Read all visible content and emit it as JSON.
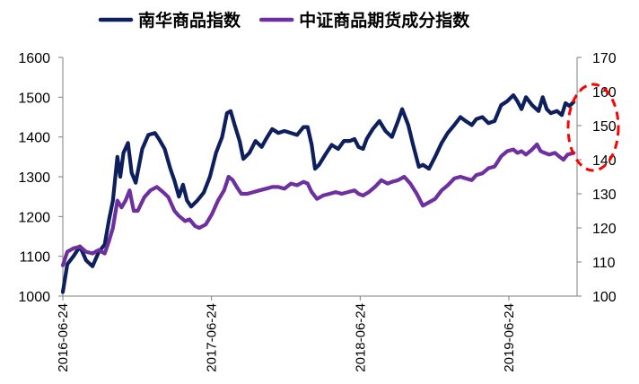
{
  "chart_data": {
    "type": "line",
    "x_labels": [
      "2016-06-24",
      "2017-06-24",
      "2018-06-24",
      "2019-06-24"
    ],
    "y_left": {
      "ticks": [
        "1000",
        "1100",
        "1200",
        "1300",
        "1400",
        "1500",
        "1600"
      ],
      "min": 1000,
      "max": 1600
    },
    "y_right": {
      "ticks": [
        "100",
        "110",
        "120",
        "130",
        "140",
        "150",
        "160",
        "170"
      ],
      "min": 100,
      "max": 170
    },
    "series": [
      {
        "name": "南华商品指数",
        "axis": "left",
        "color": "#0d1f5c",
        "points": [
          [
            "2016-06-24",
            1010
          ],
          [
            "2016-07-05",
            1080
          ],
          [
            "2016-07-20",
            1100
          ],
          [
            "2016-08-05",
            1125
          ],
          [
            "2016-08-20",
            1090
          ],
          [
            "2016-09-05",
            1075
          ],
          [
            "2016-09-20",
            1110
          ],
          [
            "2016-10-05",
            1130
          ],
          [
            "2016-10-15",
            1190
          ],
          [
            "2016-10-25",
            1240
          ],
          [
            "2016-11-05",
            1350
          ],
          [
            "2016-11-12",
            1300
          ],
          [
            "2016-11-20",
            1360
          ],
          [
            "2016-12-01",
            1385
          ],
          [
            "2016-12-10",
            1310
          ],
          [
            "2016-12-20",
            1285
          ],
          [
            "2017-01-05",
            1370
          ],
          [
            "2017-01-20",
            1405
          ],
          [
            "2017-02-05",
            1410
          ],
          [
            "2017-02-15",
            1395
          ],
          [
            "2017-03-01",
            1370
          ],
          [
            "2017-03-15",
            1320
          ],
          [
            "2017-03-25",
            1290
          ],
          [
            "2017-04-05",
            1250
          ],
          [
            "2017-04-15",
            1280
          ],
          [
            "2017-04-25",
            1240
          ],
          [
            "2017-05-05",
            1225
          ],
          [
            "2017-05-20",
            1240
          ],
          [
            "2017-06-05",
            1260
          ],
          [
            "2017-06-20",
            1300
          ],
          [
            "2017-07-05",
            1360
          ],
          [
            "2017-07-20",
            1400
          ],
          [
            "2017-08-01",
            1460
          ],
          [
            "2017-08-10",
            1465
          ],
          [
            "2017-08-20",
            1430
          ],
          [
            "2017-09-01",
            1390
          ],
          [
            "2017-09-10",
            1345
          ],
          [
            "2017-09-25",
            1360
          ],
          [
            "2017-10-10",
            1390
          ],
          [
            "2017-10-25",
            1375
          ],
          [
            "2017-11-05",
            1395
          ],
          [
            "2017-11-20",
            1420
          ],
          [
            "2017-12-05",
            1410
          ],
          [
            "2017-12-20",
            1415
          ],
          [
            "2018-01-05",
            1410
          ],
          [
            "2018-01-20",
            1405
          ],
          [
            "2018-02-05",
            1425
          ],
          [
            "2018-02-15",
            1425
          ],
          [
            "2018-02-25",
            1380
          ],
          [
            "2018-03-05",
            1320
          ],
          [
            "2018-03-15",
            1330
          ],
          [
            "2018-03-30",
            1355
          ],
          [
            "2018-04-15",
            1380
          ],
          [
            "2018-05-01",
            1370
          ],
          [
            "2018-05-15",
            1390
          ],
          [
            "2018-05-30",
            1390
          ],
          [
            "2018-06-10",
            1395
          ],
          [
            "2018-06-20",
            1375
          ],
          [
            "2018-07-01",
            1370
          ],
          [
            "2018-07-10",
            1395
          ],
          [
            "2018-07-25",
            1420
          ],
          [
            "2018-08-10",
            1440
          ],
          [
            "2018-08-25",
            1415
          ],
          [
            "2018-09-10",
            1400
          ],
          [
            "2018-09-25",
            1440
          ],
          [
            "2018-10-05",
            1470
          ],
          [
            "2018-10-20",
            1430
          ],
          [
            "2018-11-01",
            1380
          ],
          [
            "2018-11-15",
            1325
          ],
          [
            "2018-11-25",
            1330
          ],
          [
            "2018-12-10",
            1320
          ],
          [
            "2018-12-25",
            1350
          ],
          [
            "2019-01-10",
            1385
          ],
          [
            "2019-01-25",
            1410
          ],
          [
            "2019-02-10",
            1430
          ],
          [
            "2019-02-25",
            1450
          ],
          [
            "2019-03-10",
            1440
          ],
          [
            "2019-03-25",
            1430
          ],
          [
            "2019-04-05",
            1445
          ],
          [
            "2019-04-20",
            1450
          ],
          [
            "2019-05-05",
            1435
          ],
          [
            "2019-05-20",
            1440
          ],
          [
            "2019-06-05",
            1480
          ],
          [
            "2019-06-20",
            1490
          ],
          [
            "2019-07-05",
            1505
          ],
          [
            "2019-07-15",
            1490
          ],
          [
            "2019-07-25",
            1470
          ],
          [
            "2019-08-05",
            1500
          ],
          [
            "2019-08-20",
            1480
          ],
          [
            "2019-09-05",
            1465
          ],
          [
            "2019-09-15",
            1500
          ],
          [
            "2019-09-25",
            1470
          ],
          [
            "2019-10-05",
            1460
          ],
          [
            "2019-10-20",
            1465
          ],
          [
            "2019-11-01",
            1455
          ],
          [
            "2019-11-10",
            1485
          ],
          [
            "2019-11-20",
            1478
          ],
          [
            "2019-11-30",
            1488
          ]
        ]
      },
      {
        "name": "中证商品期货成分指数",
        "axis": "right",
        "color": "#6e2f9f",
        "points": [
          [
            "2016-06-24",
            109
          ],
          [
            "2016-07-05",
            113
          ],
          [
            "2016-07-20",
            114
          ],
          [
            "2016-08-05",
            114.5
          ],
          [
            "2016-08-20",
            113
          ],
          [
            "2016-09-05",
            112.5
          ],
          [
            "2016-09-20",
            113.5
          ],
          [
            "2016-10-05",
            112.5
          ],
          [
            "2016-10-15",
            116
          ],
          [
            "2016-10-25",
            120
          ],
          [
            "2016-11-05",
            128
          ],
          [
            "2016-11-15",
            126
          ],
          [
            "2016-11-25",
            128
          ],
          [
            "2016-12-05",
            131
          ],
          [
            "2016-12-15",
            125
          ],
          [
            "2016-12-25",
            125
          ],
          [
            "2017-01-10",
            129
          ],
          [
            "2017-01-25",
            131
          ],
          [
            "2017-02-10",
            132
          ],
          [
            "2017-02-25",
            130.5
          ],
          [
            "2017-03-10",
            129
          ],
          [
            "2017-03-25",
            125
          ],
          [
            "2017-04-05",
            123.5
          ],
          [
            "2017-04-20",
            122
          ],
          [
            "2017-05-01",
            122.5
          ],
          [
            "2017-05-15",
            120.5
          ],
          [
            "2017-05-25",
            120
          ],
          [
            "2017-06-10",
            121
          ],
          [
            "2017-06-25",
            124
          ],
          [
            "2017-07-10",
            128
          ],
          [
            "2017-07-25",
            131
          ],
          [
            "2017-08-05",
            135
          ],
          [
            "2017-08-15",
            134
          ],
          [
            "2017-08-25",
            132
          ],
          [
            "2017-09-05",
            130
          ],
          [
            "2017-09-20",
            130
          ],
          [
            "2017-10-05",
            130.5
          ],
          [
            "2017-10-20",
            131
          ],
          [
            "2017-11-05",
            131.5
          ],
          [
            "2017-11-20",
            132
          ],
          [
            "2017-12-05",
            132
          ],
          [
            "2017-12-20",
            131.5
          ],
          [
            "2018-01-05",
            133
          ],
          [
            "2018-01-20",
            132.5
          ],
          [
            "2018-02-05",
            133.5
          ],
          [
            "2018-02-15",
            133
          ],
          [
            "2018-02-25",
            130.5
          ],
          [
            "2018-03-10",
            128.5
          ],
          [
            "2018-03-25",
            129.5
          ],
          [
            "2018-04-10",
            130
          ],
          [
            "2018-04-25",
            130.5
          ],
          [
            "2018-05-10",
            130
          ],
          [
            "2018-05-25",
            130.5
          ],
          [
            "2018-06-10",
            131
          ],
          [
            "2018-06-20",
            130
          ],
          [
            "2018-07-01",
            129.5
          ],
          [
            "2018-07-15",
            130.5
          ],
          [
            "2018-07-30",
            132
          ],
          [
            "2018-08-15",
            134
          ],
          [
            "2018-08-30",
            133
          ],
          [
            "2018-09-10",
            133.5
          ],
          [
            "2018-09-25",
            134
          ],
          [
            "2018-10-10",
            135
          ],
          [
            "2018-10-25",
            133
          ],
          [
            "2018-11-10",
            130
          ],
          [
            "2018-11-25",
            126.5
          ],
          [
            "2018-12-10",
            127.5
          ],
          [
            "2018-12-25",
            128.5
          ],
          [
            "2019-01-10",
            131
          ],
          [
            "2019-01-25",
            132.5
          ],
          [
            "2019-02-10",
            134.5
          ],
          [
            "2019-02-25",
            135
          ],
          [
            "2019-03-10",
            134.5
          ],
          [
            "2019-03-25",
            134
          ],
          [
            "2019-04-05",
            135.5
          ],
          [
            "2019-04-20",
            136
          ],
          [
            "2019-05-05",
            137.5
          ],
          [
            "2019-05-20",
            138
          ],
          [
            "2019-06-05",
            141
          ],
          [
            "2019-06-20",
            142.5
          ],
          [
            "2019-07-05",
            143
          ],
          [
            "2019-07-15",
            142
          ],
          [
            "2019-07-25",
            142.5
          ],
          [
            "2019-08-05",
            141.5
          ],
          [
            "2019-08-20",
            143
          ],
          [
            "2019-09-01",
            144.5
          ],
          [
            "2019-09-10",
            142.5
          ],
          [
            "2019-09-20",
            142
          ],
          [
            "2019-10-01",
            141.5
          ],
          [
            "2019-10-15",
            142
          ],
          [
            "2019-10-25",
            141
          ],
          [
            "2019-11-05",
            140
          ],
          [
            "2019-11-15",
            141.5
          ],
          [
            "2019-11-30",
            142
          ]
        ]
      }
    ],
    "annotation": {
      "shape": "dashed-ellipse",
      "color": "#ff0000",
      "target": "right-axis-end"
    },
    "legend_position": "top-center",
    "grid": false
  }
}
